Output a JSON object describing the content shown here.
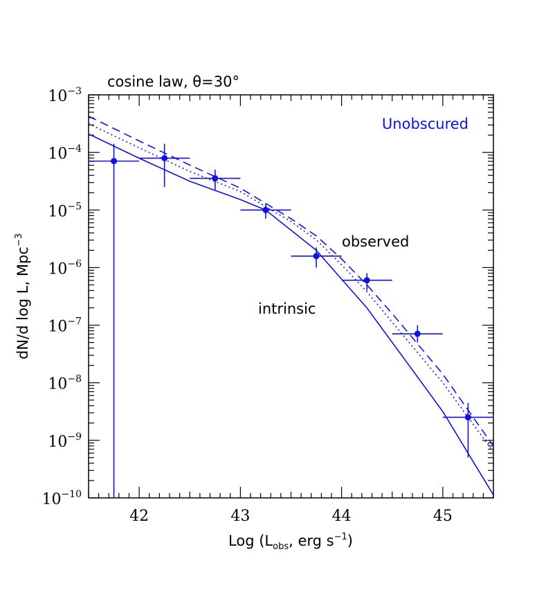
{
  "chart_data": {
    "type": "line",
    "title": "cosine law, θ=30°",
    "xlabel": "Log (L_obs, erg s⁻¹)",
    "xlabel_parts": {
      "prefix": "Log (L",
      "sub": "obs",
      "mid": ", erg s",
      "sup": "−1",
      "suffix": ")"
    },
    "ylabel": "dN/d log L, Mpc⁻³",
    "ylabel_parts": {
      "main": "dN/d log L, Mpc",
      "sup": "−3"
    },
    "xlim": [
      41.5,
      45.5
    ],
    "ylim_log10": [
      -10,
      -3
    ],
    "yscale": "log",
    "x_ticks": [
      42,
      43,
      44,
      45
    ],
    "x_tick_labels": [
      "42",
      "43",
      "44",
      "45"
    ],
    "y_ticks_log10": [
      -3,
      -4,
      -5,
      -6,
      -7,
      -8,
      -9,
      -10
    ],
    "y_tick_labels": [
      {
        "base": "10",
        "exp": "−3"
      },
      {
        "base": "10",
        "exp": "−4"
      },
      {
        "base": "10",
        "exp": "−5"
      },
      {
        "base": "10",
        "exp": "−6"
      },
      {
        "base": "10",
        "exp": "−7"
      },
      {
        "base": "10",
        "exp": "−8"
      },
      {
        "base": "10",
        "exp": "−9"
      },
      {
        "base": "10",
        "exp": "−10"
      }
    ],
    "panel_label": "Unobscured",
    "color": "#1010e0",
    "annotations": {
      "observed": "observed",
      "intrinsic": "intrinsic"
    },
    "series": [
      {
        "style": "solid",
        "x": [
          41.5,
          42.0,
          42.5,
          43.0,
          43.25,
          43.5,
          43.75,
          44.0,
          44.25,
          44.5,
          45.0,
          45.5
        ],
        "log10y": [
          -3.68,
          -4.1,
          -4.5,
          -4.82,
          -5.0,
          -5.35,
          -5.7,
          -6.2,
          -6.7,
          -7.3,
          -8.5,
          -9.95
        ]
      },
      {
        "style": "dashed",
        "x": [
          41.5,
          42.0,
          42.5,
          43.0,
          43.5,
          43.75,
          44.0,
          44.25,
          44.5,
          45.0,
          45.5
        ],
        "log10y": [
          -3.37,
          -3.8,
          -4.22,
          -4.62,
          -5.15,
          -5.45,
          -5.85,
          -6.3,
          -6.8,
          -7.85,
          -9.1
        ]
      },
      {
        "style": "dotted",
        "x": [
          41.5,
          42.0,
          42.5,
          43.0,
          43.5,
          43.75,
          44.0,
          44.25,
          44.5,
          45.0,
          45.5
        ],
        "log10y": [
          -3.5,
          -3.92,
          -4.33,
          -4.68,
          -5.2,
          -5.52,
          -5.95,
          -6.42,
          -6.95,
          -8.0,
          -9.2
        ]
      }
    ],
    "data_points": [
      {
        "x": 41.75,
        "xerr": [
          41.5,
          42.0
        ],
        "log10y": -4.15,
        "log10yerr": [
          -10,
          -3.85
        ]
      },
      {
        "x": 42.25,
        "xerr": [
          42.0,
          42.5
        ],
        "log10y": -4.1,
        "log10yerr": [
          -4.6,
          -3.85
        ]
      },
      {
        "x": 42.75,
        "xerr": [
          42.5,
          43.0
        ],
        "log10y": -4.45,
        "log10yerr": [
          -4.65,
          -4.3
        ]
      },
      {
        "x": 43.25,
        "xerr": [
          43.0,
          43.5
        ],
        "log10y": -5.0,
        "log10yerr": [
          -5.15,
          -4.9
        ]
      },
      {
        "x": 43.75,
        "xerr": [
          43.5,
          44.0
        ],
        "log10y": -5.8,
        "log10yerr": [
          -6.0,
          -5.65
        ]
      },
      {
        "x": 44.25,
        "xerr": [
          44.0,
          44.5
        ],
        "log10y": -6.22,
        "log10yerr": [
          -6.4,
          -6.1
        ]
      },
      {
        "x": 44.75,
        "xerr": [
          44.5,
          45.0
        ],
        "log10y": -7.15,
        "log10yerr": [
          -7.3,
          -7.0
        ]
      },
      {
        "x": 45.25,
        "xerr": [
          45.0,
          45.5
        ],
        "log10y": -8.6,
        "log10yerr": [
          -9.3,
          -8.35
        ]
      }
    ]
  }
}
